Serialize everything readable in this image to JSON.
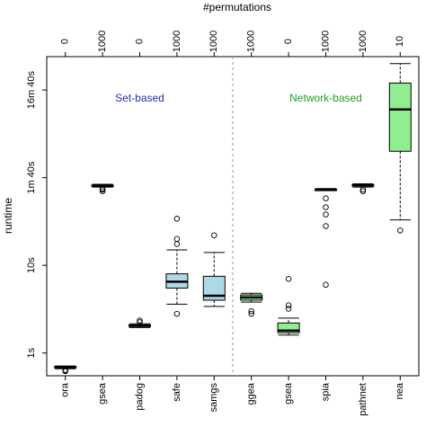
{
  "chart_data": {
    "type": "boxplot",
    "xlabel_top": "#permutations",
    "ylabel": "runtime",
    "y_scale": "log10",
    "y_unit": "seconds",
    "ylim": [
      0.55,
      2400
    ],
    "y_ticks": [
      {
        "value": 1,
        "label": "1s"
      },
      {
        "value": 10,
        "label": "10s"
      },
      {
        "value": 100,
        "label": "1m 40s"
      },
      {
        "value": 1000,
        "label": "16m 40s"
      }
    ],
    "group_labels": [
      {
        "text": "Set-based",
        "color": "#2b2bb0"
      },
      {
        "text": "Network-based",
        "color": "#22a022"
      }
    ],
    "divider_after": "samgs",
    "categories": [
      "ora",
      "gsea",
      "padog",
      "safe",
      "samgs",
      "ggea",
      "gsea",
      "spia",
      "pathnet",
      "nea"
    ],
    "permutations": [
      "0",
      "1000",
      "0",
      "1000",
      "1000",
      "1000",
      "0",
      "1000",
      "1000",
      "10"
    ],
    "colors": {
      "set_based": "#add8e6",
      "network_based": "#90ee90",
      "line": "#000000"
    },
    "boxes": [
      {
        "name": "ora",
        "group": "set",
        "whisker_low": 0.66,
        "q1": 0.68,
        "median": 0.69,
        "q3": 0.7,
        "whisker_high": 0.71,
        "outliers": [
          0.62,
          0.63,
          0.64
        ]
      },
      {
        "name": "gsea",
        "group": "set",
        "whisker_low": 78,
        "q1": 80,
        "median": 81,
        "q3": 82,
        "whisker_high": 84,
        "outliers": [
          70,
          73,
          75
        ]
      },
      {
        "name": "padog",
        "group": "set",
        "whisker_low": 1.95,
        "q1": 2.0,
        "median": 2.05,
        "q3": 2.1,
        "whisker_high": 2.15,
        "outliers": [
          2.25,
          2.35
        ]
      },
      {
        "name": "safe",
        "group": "set",
        "whisker_low": 3.6,
        "q1": 5.5,
        "median": 6.5,
        "q3": 8.0,
        "whisker_high": 15,
        "outliers": [
          2.8,
          17.5,
          20,
          34
        ]
      },
      {
        "name": "samgs",
        "group": "set",
        "whisker_low": 3.4,
        "q1": 4.0,
        "median": 4.5,
        "q3": 7.5,
        "whisker_high": 14,
        "outliers": [
          22
        ]
      },
      {
        "name": "ggea",
        "group": "network",
        "whisker_low": 3.8,
        "q1": 4.0,
        "median": 4.3,
        "q3": 4.6,
        "whisker_high": 4.8,
        "outliers": [
          2.8,
          3.0
        ]
      },
      {
        "name": "gsea",
        "group": "network",
        "whisker_low": 1.6,
        "q1": 1.7,
        "median": 1.8,
        "q3": 2.2,
        "whisker_high": 2.5,
        "outliers": [
          3.2,
          3.5,
          7.0
        ]
      },
      {
        "name": "spia",
        "group": "network",
        "whisker_low": 71,
        "q1": 72,
        "median": 73,
        "q3": 74,
        "whisker_high": 75,
        "outliers": [
          6.0,
          28,
          38,
          46,
          58
        ]
      },
      {
        "name": "pathnet",
        "group": "network",
        "whisker_low": 78,
        "q1": 80,
        "median": 82,
        "q3": 83,
        "whisker_high": 85,
        "outliers": [
          70,
          73
        ]
      },
      {
        "name": "nea",
        "group": "network",
        "whisker_low": 33,
        "q1": 200,
        "median": 600,
        "q3": 1200,
        "whisker_high": 2000,
        "outliers": [
          25
        ]
      }
    ]
  }
}
